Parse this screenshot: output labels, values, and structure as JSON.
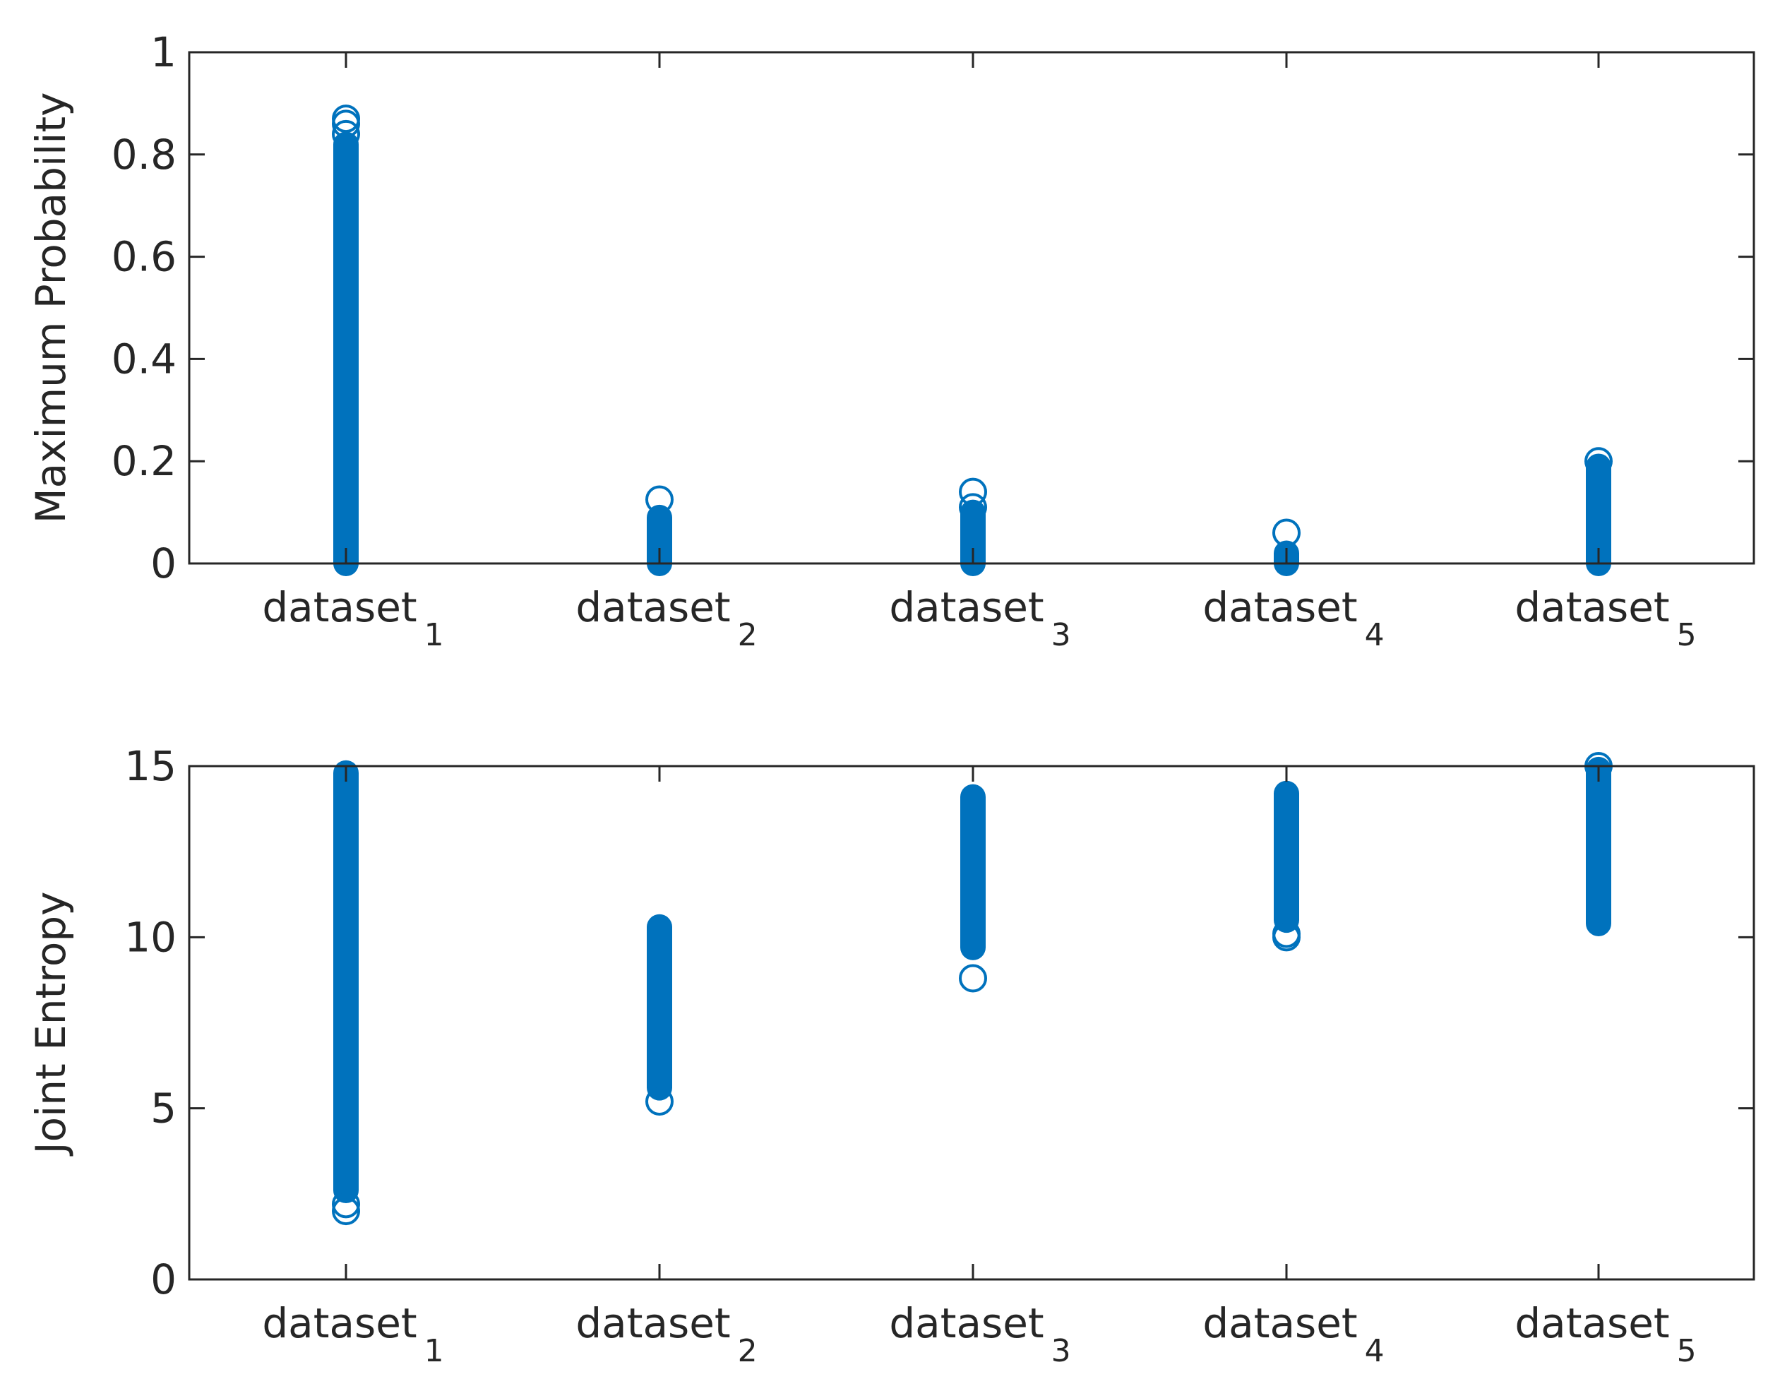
{
  "colors": {
    "marker": "#0072BD",
    "axis": "#262626"
  },
  "chart_data": [
    {
      "type": "scatter",
      "marker": "circle-open",
      "ylabel": "Maximum Probability",
      "ylim": [
        0,
        1
      ],
      "yticks": [
        0,
        0.2,
        0.4,
        0.6,
        0.8,
        1
      ],
      "ytick_labels": [
        "0",
        "0.2",
        "0.4",
        "0.6",
        "0.8",
        "1"
      ],
      "categories": [
        {
          "base": "dataset",
          "sub": "1"
        },
        {
          "base": "dataset",
          "sub": "2"
        },
        {
          "base": "dataset",
          "sub": "3"
        },
        {
          "base": "dataset",
          "sub": "4"
        },
        {
          "base": "dataset",
          "sub": "5"
        }
      ],
      "groups": [
        {
          "dense_min": 0.0,
          "dense_max": 0.82,
          "outliers": [
            0.84,
            0.86,
            0.87
          ]
        },
        {
          "dense_min": 0.0,
          "dense_max": 0.09,
          "outliers": [
            0.125
          ]
        },
        {
          "dense_min": 0.0,
          "dense_max": 0.1,
          "outliers": [
            0.11,
            0.14
          ]
        },
        {
          "dense_min": 0.0,
          "dense_max": 0.02,
          "outliers": [
            0.06
          ]
        },
        {
          "dense_min": 0.0,
          "dense_max": 0.19,
          "outliers": [
            0.2
          ]
        }
      ]
    },
    {
      "type": "scatter",
      "marker": "circle-open",
      "ylabel": "Joint Entropy",
      "ylim": [
        0,
        15
      ],
      "yticks": [
        0,
        5,
        10,
        15
      ],
      "ytick_labels": [
        "0",
        "5",
        "10",
        "15"
      ],
      "categories": [
        {
          "base": "dataset",
          "sub": "1"
        },
        {
          "base": "dataset",
          "sub": "2"
        },
        {
          "base": "dataset",
          "sub": "3"
        },
        {
          "base": "dataset",
          "sub": "4"
        },
        {
          "base": "dataset",
          "sub": "5"
        }
      ],
      "groups": [
        {
          "dense_min": 2.6,
          "dense_max": 14.8,
          "outliers": [
            2.0,
            2.2
          ]
        },
        {
          "dense_min": 5.6,
          "dense_max": 10.3,
          "outliers": [
            5.2
          ]
        },
        {
          "dense_min": 9.7,
          "dense_max": 14.1,
          "outliers": [
            8.8
          ]
        },
        {
          "dense_min": 10.5,
          "dense_max": 14.2,
          "outliers": [
            10.0,
            10.1
          ]
        },
        {
          "dense_min": 10.4,
          "dense_max": 14.9,
          "outliers": [
            15.0
          ]
        }
      ]
    }
  ]
}
